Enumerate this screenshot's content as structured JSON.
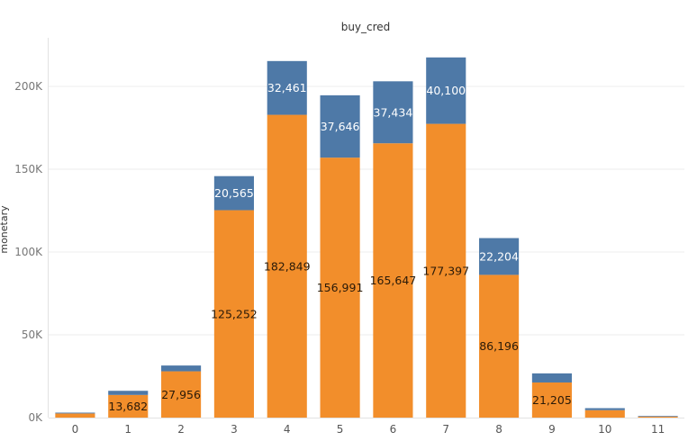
{
  "chart_data": {
    "type": "bar",
    "stacked": true,
    "title": "buy_cred",
    "ylabel": "monetary",
    "xlabel": "",
    "categories": [
      "0",
      "1",
      "2",
      "3",
      "4",
      "5",
      "6",
      "7",
      "8",
      "9",
      "10",
      "11"
    ],
    "ylim": [
      0,
      225000
    ],
    "yticks": [
      0,
      50000,
      100000,
      150000,
      200000
    ],
    "ytick_labels": [
      "0K",
      "50K",
      "100K",
      "150K",
      "200K"
    ],
    "series": [
      {
        "color": "#f28e2b",
        "label_color": "#2a1a08",
        "values": [
          2500,
          13682,
          27956,
          125252,
          182849,
          156991,
          165647,
          177397,
          86196,
          21205,
          4500,
          600
        ],
        "labels": [
          "",
          "13,682",
          "27,956",
          "125,252",
          "182,849",
          "156,991",
          "165,647",
          "177,397",
          "86,196",
          "21,205",
          "",
          ""
        ]
      },
      {
        "color": "#4e79a7",
        "label_color": "#ffffff",
        "values": [
          500,
          2500,
          3500,
          20565,
          32461,
          37646,
          37434,
          40100,
          22204,
          5500,
          1200,
          400
        ],
        "labels": [
          "",
          "",
          "",
          "20,565",
          "32,461",
          "37,646",
          "37,434",
          "40,100",
          "22,204",
          "",
          "",
          ""
        ]
      }
    ],
    "grid": true,
    "legend": "none"
  }
}
